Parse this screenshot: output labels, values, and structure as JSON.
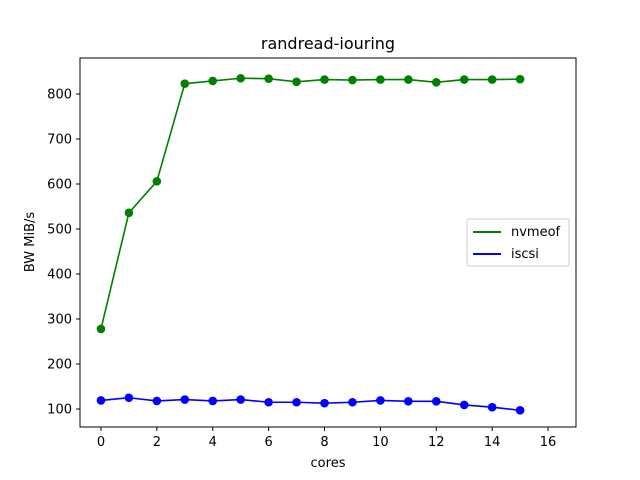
{
  "chart_data": {
    "type": "line",
    "title": "randread-iouring",
    "xlabel": "cores",
    "ylabel": "BW MiB/s",
    "xlim": [
      -0.75,
      17.0
    ],
    "ylim": [
      60,
      880
    ],
    "xticks": [
      0,
      2,
      4,
      6,
      8,
      10,
      12,
      14,
      16
    ],
    "yticks": [
      100,
      200,
      300,
      400,
      500,
      600,
      700,
      800
    ],
    "grid": false,
    "legend_position": "center-right",
    "x": [
      0,
      1,
      2,
      3,
      4,
      5,
      6,
      7,
      8,
      9,
      10,
      11,
      12,
      13,
      14,
      15
    ],
    "series": [
      {
        "name": "nvmeof",
        "color": "#008000",
        "values": [
          278,
          536,
          606,
          823,
          829,
          835,
          834,
          827,
          832,
          831,
          832,
          832,
          826,
          832,
          832,
          833
        ]
      },
      {
        "name": "iscsi",
        "color": "#0000ff",
        "values": [
          119,
          125,
          118,
          121,
          118,
          121,
          115,
          115,
          113,
          115,
          119,
          117,
          117,
          109,
          104,
          97
        ]
      }
    ]
  }
}
